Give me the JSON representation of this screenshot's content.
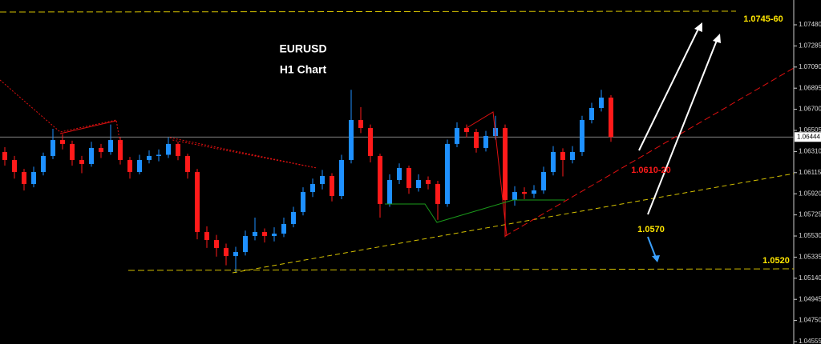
{
  "chart_data": {
    "type": "candlestick",
    "title": "EURUSD",
    "subtitle": "H1 Chart",
    "up_color": "#1e90ff",
    "down_color": "#ff1a1a",
    "ylim": [
      1.04533,
      1.07709
    ],
    "yticks": [
      {
        "value": 1.0748,
        "label": "1.07480"
      },
      1.07285,
      {
        "value": 1.0709,
        "label": "1.07090"
      },
      1.06895,
      {
        "value": 1.067,
        "label": "1.06700"
      },
      1.06505,
      {
        "value": 1.0631,
        "label": "1.06310"
      },
      1.06115,
      {
        "value": 1.0592,
        "label": "1.05920"
      },
      1.05725,
      {
        "value": 1.0553,
        "label": "1.05530"
      },
      1.05335,
      {
        "value": 1.0514,
        "label": "1.05140"
      },
      1.04945,
      {
        "value": 1.0475,
        "label": "1.04750"
      },
      1.04555
    ],
    "current_price": 1.06444,
    "annotations": [
      "1.0745-60",
      "1.0610-20",
      "1.0570",
      "1.0520"
    ],
    "ohlc": [
      [
        1.06306,
        1.0635,
        1.0618,
        1.06232
      ],
      [
        1.06232,
        1.0627,
        1.0606,
        1.06121
      ],
      [
        1.06121,
        1.0615,
        1.0595,
        1.0601
      ],
      [
        1.0601,
        1.0617,
        1.0598,
        1.06121
      ],
      [
        1.06121,
        1.063,
        1.0609,
        1.06269
      ],
      [
        1.06269,
        1.0652,
        1.0624,
        1.06416
      ],
      [
        1.06416,
        1.0647,
        1.0633,
        1.0638
      ],
      [
        1.0638,
        1.0641,
        1.0618,
        1.06232
      ],
      [
        1.06232,
        1.0627,
        1.0611,
        1.06195
      ],
      [
        1.06195,
        1.064,
        1.0617,
        1.06343
      ],
      [
        1.06343,
        1.0638,
        1.0625,
        1.06306
      ],
      [
        1.06306,
        1.0656,
        1.0628,
        1.06416
      ],
      [
        1.06416,
        1.0644,
        1.0619,
        1.06232
      ],
      [
        1.06232,
        1.0626,
        1.0606,
        1.06121
      ],
      [
        1.06121,
        1.0628,
        1.061,
        1.06232
      ],
      [
        1.06232,
        1.0632,
        1.062,
        1.06269
      ],
      [
        1.06269,
        1.0633,
        1.0622,
        1.0628
      ],
      [
        1.0628,
        1.0644,
        1.0625,
        1.0638
      ],
      [
        1.0638,
        1.064,
        1.0623,
        1.06269
      ],
      [
        1.06269,
        1.0629,
        1.0606,
        1.06121
      ],
      [
        1.06121,
        1.0615,
        1.055,
        1.05567
      ],
      [
        1.05567,
        1.0562,
        1.0542,
        1.05493
      ],
      [
        1.05493,
        1.0554,
        1.0534,
        1.05419
      ],
      [
        1.05419,
        1.0546,
        1.0526,
        1.05345
      ],
      [
        1.05345,
        1.0543,
        1.0519,
        1.05382
      ],
      [
        1.05382,
        1.0558,
        1.0535,
        1.0553
      ],
      [
        1.0553,
        1.057,
        1.0549,
        1.05567
      ],
      [
        1.05567,
        1.056,
        1.0547,
        1.0553
      ],
      [
        1.0553,
        1.0561,
        1.0548,
        1.05552
      ],
      [
        1.05552,
        1.057,
        1.0552,
        1.05641
      ],
      [
        1.05641,
        1.058,
        1.0561,
        1.05752
      ],
      [
        1.05752,
        1.0598,
        1.0572,
        1.05936
      ],
      [
        1.05936,
        1.0606,
        1.0589,
        1.0601
      ],
      [
        1.0601,
        1.0614,
        1.0596,
        1.06084
      ],
      [
        1.06084,
        1.0611,
        1.0585,
        1.05899
      ],
      [
        1.05899,
        1.0628,
        1.0587,
        1.06232
      ],
      [
        1.06232,
        1.0688,
        1.062,
        1.06601
      ],
      [
        1.06601,
        1.0672,
        1.0648,
        1.06527
      ],
      [
        1.06527,
        1.0656,
        1.0621,
        1.06269
      ],
      [
        1.06269,
        1.0629,
        1.057,
        1.05826
      ],
      [
        1.05826,
        1.061,
        1.058,
        1.06047
      ],
      [
        1.06047,
        1.062,
        1.0601,
        1.06158
      ],
      [
        1.06158,
        1.0618,
        1.0592,
        1.05973
      ],
      [
        1.05973,
        1.061,
        1.0594,
        1.06047
      ],
      [
        1.06047,
        1.0608,
        1.0596,
        1.0601
      ],
      [
        1.0601,
        1.0604,
        1.0568,
        1.05826
      ],
      [
        1.05826,
        1.0642,
        1.058,
        1.0638
      ],
      [
        1.0638,
        1.0658,
        1.0635,
        1.06527
      ],
      [
        1.06527,
        1.0656,
        1.0644,
        1.0649
      ],
      [
        1.0649,
        1.0652,
        1.063,
        1.06343
      ],
      [
        1.06343,
        1.065,
        1.0631,
        1.06453
      ],
      [
        1.06453,
        1.0664,
        1.0642,
        1.06527
      ],
      [
        1.06527,
        1.0656,
        1.0552,
        1.05862
      ],
      [
        1.05862,
        1.0599,
        1.0581,
        1.05936
      ],
      [
        1.05936,
        1.0598,
        1.0587,
        1.0592
      ],
      [
        1.0592,
        1.06,
        1.0588,
        1.05951
      ],
      [
        1.05951,
        1.0617,
        1.0592,
        1.06121
      ],
      [
        1.06121,
        1.0636,
        1.0609,
        1.06306
      ],
      [
        1.06306,
        1.0634,
        1.0608,
        1.06232
      ],
      [
        1.06232,
        1.0636,
        1.062,
        1.06306
      ],
      [
        1.06306,
        1.0664,
        1.0627,
        1.06601
      ],
      [
        1.06601,
        1.0676,
        1.0657,
        1.06712
      ],
      [
        1.06712,
        1.0688,
        1.0668,
        1.06808
      ],
      [
        1.06808,
        1.0683,
        1.064,
        1.06444
      ]
    ]
  }
}
